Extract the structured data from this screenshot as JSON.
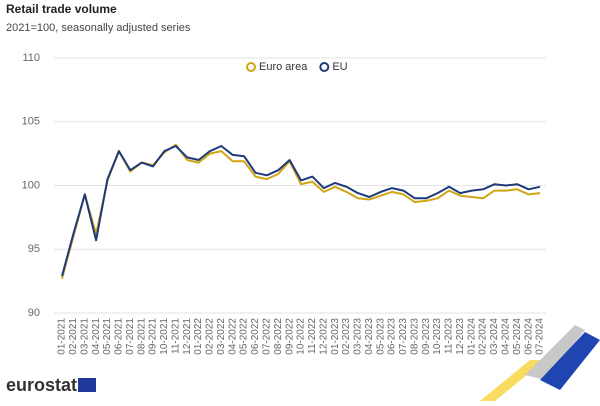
{
  "chart_data": {
    "type": "line",
    "title": "Retail trade volume",
    "subtitle": "2021=100, seasonally adjusted series",
    "logo_text": "eurostat",
    "categories": [
      "01-2021",
      "02-2021",
      "03-2021",
      "04-2021",
      "05-2021",
      "06-2021",
      "07-2021",
      "08-2021",
      "09-2021",
      "10-2021",
      "11-2021",
      "12-2021",
      "01-2022",
      "02-2022",
      "03-2022",
      "04-2022",
      "05-2022",
      "06-2022",
      "07-2022",
      "08-2022",
      "09-2022",
      "10-2022",
      "11-2022",
      "12-2022",
      "01-2023",
      "02-2023",
      "03-2023",
      "04-2023",
      "05-2023",
      "06-2023",
      "07-2023",
      "08-2023",
      "09-2023",
      "10-2023",
      "11-2023",
      "12-2023",
      "01-2024",
      "02-2024",
      "03-2024",
      "04-2024",
      "05-2024",
      "06-2024",
      "07-2024"
    ],
    "series": [
      {
        "name": "Euro area",
        "color": "#d1a514",
        "values": [
          92.7,
          96.0,
          99.3,
          96.2,
          100.4,
          102.7,
          101.1,
          101.8,
          101.6,
          102.6,
          103.2,
          102.0,
          101.8,
          102.5,
          102.7,
          101.9,
          101.9,
          100.7,
          100.5,
          100.9,
          101.9,
          100.1,
          100.3,
          99.5,
          99.9,
          99.5,
          99.0,
          98.9,
          99.2,
          99.5,
          99.3,
          98.7,
          98.8,
          99.0,
          99.6,
          99.2,
          99.1,
          99.0,
          99.6,
          99.6,
          99.7,
          99.3,
          99.4
        ]
      },
      {
        "name": "EU",
        "color": "#1f3a7a",
        "values": [
          92.9,
          96.2,
          99.3,
          95.7,
          100.5,
          102.7,
          101.2,
          101.8,
          101.5,
          102.7,
          103.1,
          102.2,
          102.0,
          102.7,
          103.1,
          102.4,
          102.3,
          101.0,
          100.8,
          101.2,
          102.0,
          100.4,
          100.7,
          99.8,
          100.2,
          99.9,
          99.4,
          99.1,
          99.5,
          99.8,
          99.6,
          99.0,
          99.0,
          99.4,
          99.9,
          99.4,
          99.6,
          99.7,
          100.1,
          100.0,
          100.1,
          99.7,
          99.9
        ]
      }
    ],
    "ylim": [
      90,
      110
    ],
    "yticks": [
      90,
      95,
      100,
      105,
      110
    ],
    "grid": true,
    "legend": "top"
  }
}
